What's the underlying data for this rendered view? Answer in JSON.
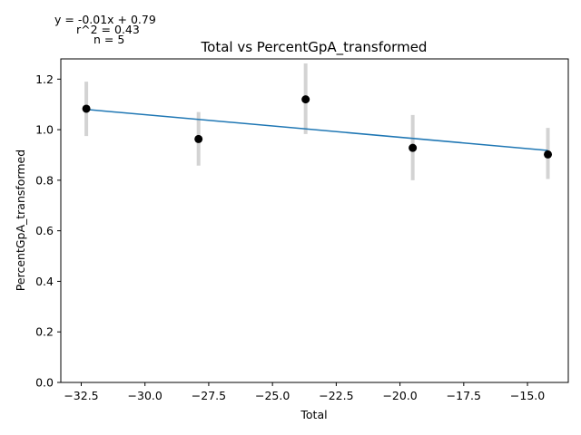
{
  "chart_data": {
    "type": "scatter",
    "title": "Total vs PercentGpA_transformed",
    "xlabel": "Total",
    "ylabel": "PercentGpA_transformed",
    "xlim": [
      -33.3,
      -13.4
    ],
    "ylim": [
      0.0,
      1.28
    ],
    "xticks": [
      -32.5,
      -30.0,
      -27.5,
      -25.0,
      -22.5,
      -20.0,
      -17.5,
      -15.0
    ],
    "xtick_labels": [
      "−32.5",
      "−30.0",
      "−27.5",
      "−25.0",
      "−22.5",
      "−20.0",
      "−17.5",
      "−15.0"
    ],
    "yticks": [
      0.0,
      0.2,
      0.4,
      0.6,
      0.8,
      1.0,
      1.2
    ],
    "ytick_labels": [
      "0.0",
      "0.2",
      "0.4",
      "0.6",
      "0.8",
      "1.0",
      "1.2"
    ],
    "grid": false,
    "points": [
      {
        "x": -32.3,
        "y": 1.083,
        "err_low": 0.975,
        "err_high": 1.19
      },
      {
        "x": -27.9,
        "y": 0.963,
        "err_low": 0.858,
        "err_high": 1.07
      },
      {
        "x": -23.7,
        "y": 1.12,
        "err_low": 0.983,
        "err_high": 1.262
      },
      {
        "x": -19.5,
        "y": 0.928,
        "err_low": 0.8,
        "err_high": 1.058
      },
      {
        "x": -14.2,
        "y": 0.902,
        "err_low": 0.805,
        "err_high": 1.007
      }
    ],
    "fit_line": {
      "x": [
        -32.3,
        -14.2
      ],
      "y": [
        1.08,
        0.918
      ]
    },
    "annotations": {
      "equation": "y = -0.01x + 0.79",
      "r2": "r^2 = 0.43",
      "n": "n = 5"
    },
    "colors": {
      "point": "#000000",
      "errorbar": "#d3d3d3",
      "fit": "#1f77b4",
      "axis": "#000000"
    }
  }
}
